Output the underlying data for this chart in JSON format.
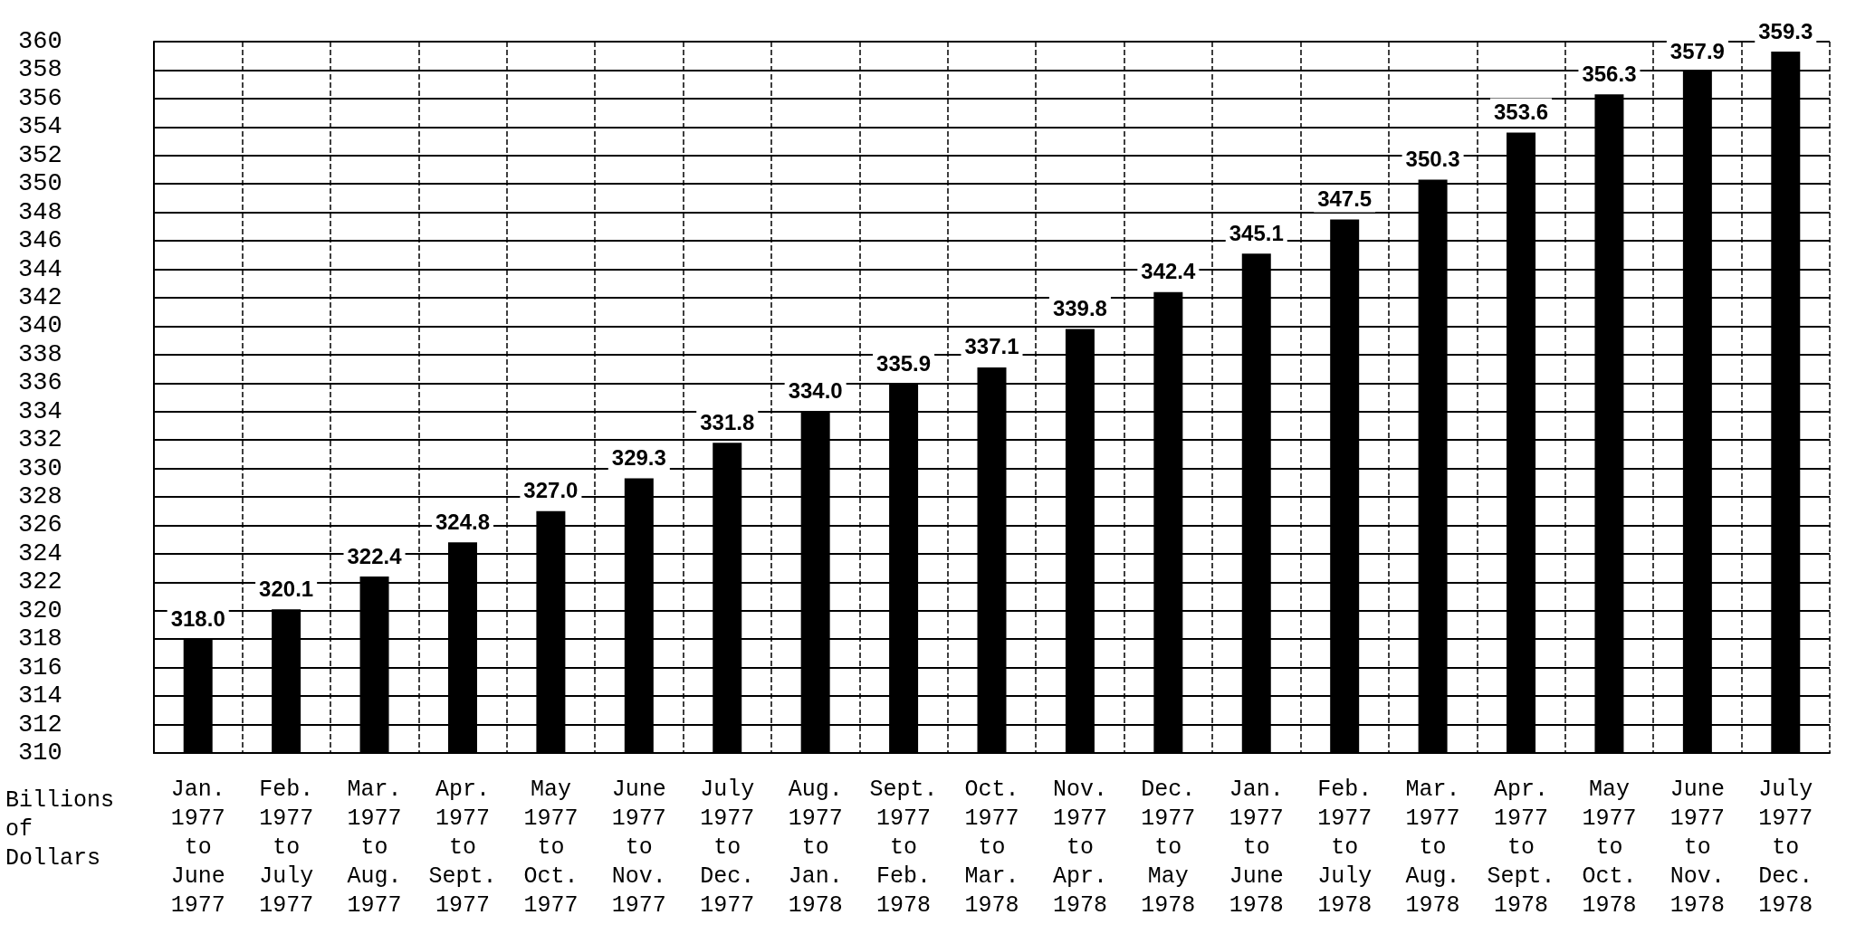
{
  "chart_data": {
    "type": "bar",
    "ylabel": "Billions\nof\nDollars",
    "categories": [
      "Jan.\n1977\nto\nJune\n1977",
      "Feb.\n1977\nto\nJuly\n1977",
      "Mar.\n1977\nto\nAug.\n1977",
      "Apr.\n1977\nto\nSept.\n1977",
      "May\n1977\nto\nOct.\n1977",
      "June\n1977\nto\nNov.\n1977",
      "July\n1977\nto\nDec.\n1977",
      "Aug.\n1977\nto\nJan.\n1978",
      "Sept.\n1977\nto\nFeb.\n1978",
      "Oct.\n1977\nto\nMar.\n1978",
      "Nov.\n1977\nto\nApr.\n1978",
      "Dec.\n1977\nto\nMay\n1978",
      "Jan.\n1977\nto\nJune\n1978",
      "Feb.\n1977\nto\nJuly\n1978",
      "Mar.\n1977\nto\nAug.\n1978",
      "Apr.\n1977\nto\nSept.\n1978",
      "May\n1977\nto\nOct.\n1978",
      "June\n1977\nto\nNov.\n1978",
      "July\n1977\nto\nDec.\n1978"
    ],
    "values": [
      318.0,
      320.1,
      322.4,
      324.8,
      327.0,
      329.3,
      331.8,
      334.0,
      335.9,
      337.1,
      339.8,
      342.4,
      345.1,
      347.5,
      350.3,
      353.6,
      356.3,
      357.9,
      359.3
    ],
    "value_labels": [
      "318.0",
      "320.1",
      "322.4",
      "324.8",
      "327.0",
      "329.3",
      "331.8",
      "334.0",
      "335.9",
      "337.1",
      "339.8",
      "342.4",
      "345.1",
      "347.5",
      "350.3",
      "353.6",
      "356.3",
      "357.9",
      "359.3"
    ],
    "color": "#000000",
    "ylim": [
      310,
      360
    ],
    "yticks": [
      310,
      312,
      314,
      316,
      318,
      320,
      322,
      324,
      326,
      328,
      330,
      332,
      334,
      336,
      338,
      340,
      342,
      344,
      346,
      348,
      350,
      352,
      354,
      356,
      358,
      360
    ],
    "grid": true
  }
}
